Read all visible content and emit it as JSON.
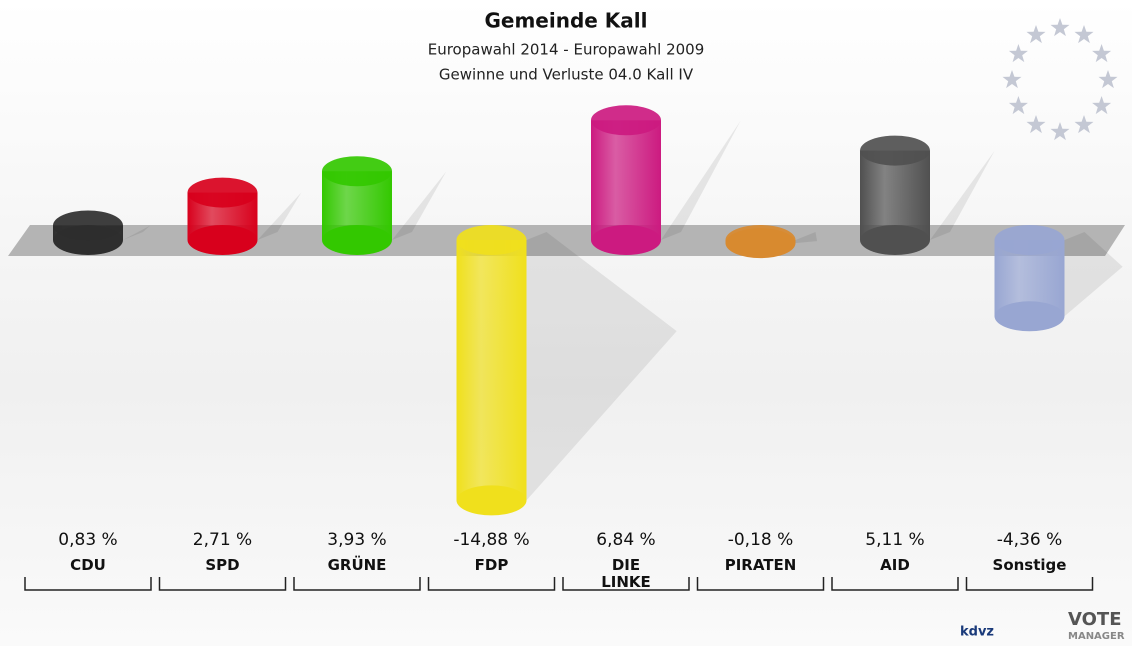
{
  "chart_data": {
    "type": "bar",
    "title": "Gemeinde Kall",
    "subtitle": [
      "Europawahl 2014 - Europawahl 2009",
      "Gewinne und Verluste 04.0 Kall IV"
    ],
    "categories": [
      "CDU",
      "SPD",
      "GRÜNE",
      "FDP",
      "DIE LINKE",
      "PIRATEN",
      "AID",
      "Sonstige"
    ],
    "values": [
      0.83,
      2.71,
      3.93,
      -14.88,
      6.84,
      -0.18,
      5.11,
      -4.36
    ],
    "value_labels": [
      "0,83 %",
      "2,71 %",
      "3,93 %",
      "-14,88 %",
      "6,84 %",
      "-0,18 %",
      "5,11 %",
      "-4,36 %"
    ],
    "colors": [
      "#2e2e2e",
      "#d8001c",
      "#33c800",
      "#f0e01c",
      "#cc1a80",
      "#d88a30",
      "#505050",
      "#98a6d2"
    ],
    "brand": [
      "kdvz",
      "VOTE",
      "MANAGER"
    ]
  }
}
